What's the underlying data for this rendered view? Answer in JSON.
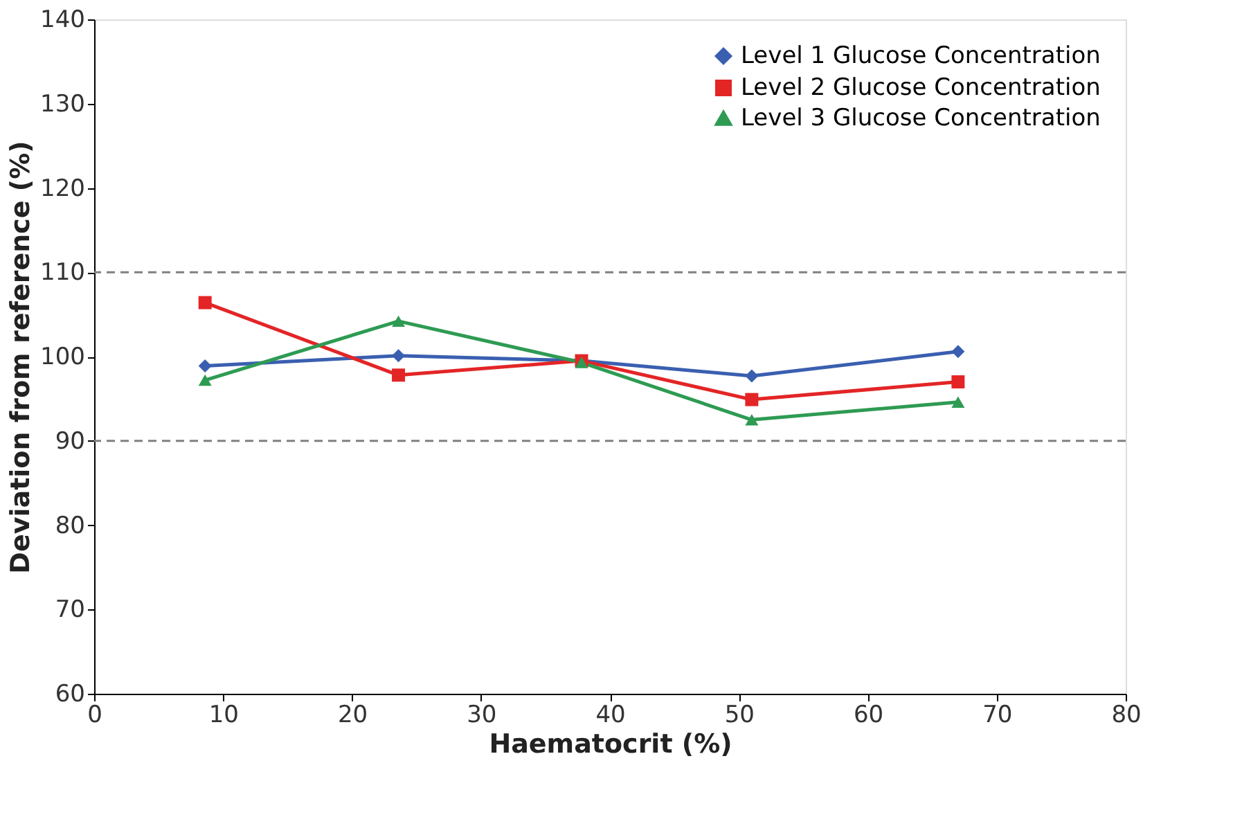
{
  "chart_data": {
    "type": "line",
    "xlabel": "Haematocrit (%)",
    "ylabel": "Deviation from reference (%)",
    "x": [
      8.6,
      23.6,
      37.8,
      51,
      67
    ],
    "series": [
      {
        "name": "Level 1 Glucose Concentration",
        "color": "#3a5fb0",
        "marker": "diamond",
        "values": [
          98.9,
          100.1,
          99.5,
          97.7,
          100.6
        ]
      },
      {
        "name": "Level 2 Glucose Concentration",
        "color": "#e32526",
        "marker": "square",
        "values": [
          106.4,
          97.8,
          99.5,
          94.9,
          97.0
        ]
      },
      {
        "name": "Level 3 Glucose Concentration",
        "color": "#2e9b53",
        "marker": "triangle",
        "values": [
          97.2,
          104.2,
          99.3,
          92.5,
          94.6
        ]
      }
    ],
    "xlim": [
      0,
      80
    ],
    "xticks": [
      0,
      10,
      20,
      30,
      40,
      50,
      60,
      70,
      80
    ],
    "ylim": [
      60,
      140
    ],
    "yticks": [
      60,
      70,
      80,
      90,
      100,
      110,
      120,
      130,
      140
    ],
    "ref_lines": [
      {
        "axis": "y",
        "value": 110,
        "color": "#808080",
        "line_style": "dashed"
      },
      {
        "axis": "y",
        "value": 90,
        "color": "#808080",
        "line_style": "dashed"
      }
    ],
    "grid": false,
    "legend": "top right",
    "line_style": "solid"
  }
}
